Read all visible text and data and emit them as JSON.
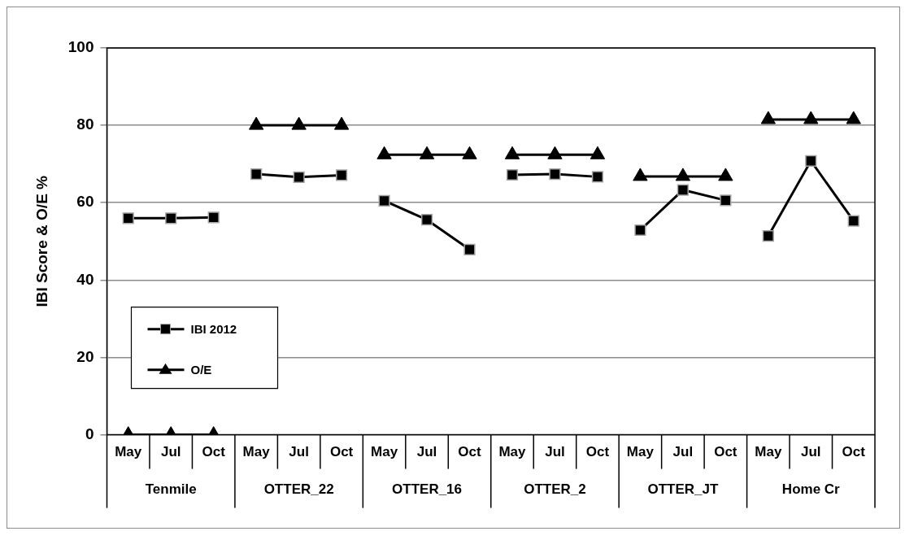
{
  "chart_data": {
    "type": "line",
    "ylabel": "IBI Score & O/E %",
    "categories": [
      "May",
      "Jul",
      "Oct",
      "May",
      "Jul",
      "Oct",
      "May",
      "Jul",
      "Oct",
      "May",
      "Jul",
      "Oct",
      "May",
      "Jul",
      "Oct",
      "May",
      "Jul",
      "Oct"
    ],
    "annotations": [
      "Tenmile",
      "OTTER_22",
      "OTTER_16",
      "OTTER_2",
      "OTTER_JT",
      "Home Cr"
    ],
    "series": [
      {
        "name": "IBI 2012",
        "color": "#000000",
        "marker": "square",
        "values": [
          56,
          56,
          56.2,
          null,
          null,
          null,
          null,
          null,
          null,
          null,
          null,
          null,
          null,
          null,
          null,
          null,
          null,
          null
        ]
      },
      {
        "name": "O/E",
        "color": "#000000",
        "marker": "triangle",
        "values": [
          0,
          0,
          0,
          null,
          null,
          null,
          null,
          null,
          null,
          null,
          null,
          null,
          null,
          null,
          null,
          null,
          null,
          null
        ]
      },
      {
        "color": "#000000",
        "marker": "square",
        "values": [
          null,
          null,
          null,
          67.4,
          66.6,
          67.1,
          null,
          null,
          null,
          null,
          null,
          null,
          null,
          null,
          null,
          null,
          null,
          null
        ]
      },
      {
        "color": "#000000",
        "marker": "triangle",
        "values": [
          null,
          null,
          null,
          80,
          80,
          80,
          null,
          null,
          null,
          null,
          null,
          null,
          null,
          null,
          null,
          null,
          null,
          null
        ]
      },
      {
        "color": "#000000",
        "marker": "square",
        "values": [
          null,
          null,
          null,
          null,
          null,
          null,
          60.5,
          55.6,
          47.9,
          null,
          null,
          null,
          null,
          null,
          null,
          null,
          null,
          null
        ]
      },
      {
        "color": "#000000",
        "marker": "triangle",
        "values": [
          null,
          null,
          null,
          null,
          null,
          null,
          72.4,
          72.4,
          72.4,
          null,
          null,
          null,
          null,
          null,
          null,
          null,
          null,
          null
        ]
      },
      {
        "color": "#000000",
        "marker": "square",
        "values": [
          null,
          null,
          null,
          null,
          null,
          null,
          null,
          null,
          null,
          67.2,
          67.4,
          66.7,
          null,
          null,
          null,
          null,
          null,
          null
        ]
      },
      {
        "color": "#000000",
        "marker": "triangle",
        "values": [
          null,
          null,
          null,
          null,
          null,
          null,
          null,
          null,
          null,
          72.4,
          72.4,
          72.4,
          null,
          null,
          null,
          null,
          null,
          null
        ]
      },
      {
        "color": "#000000",
        "marker": "square",
        "values": [
          null,
          null,
          null,
          null,
          null,
          null,
          null,
          null,
          null,
          null,
          null,
          null,
          52.9,
          63.3,
          60.6,
          null,
          null,
          null
        ]
      },
      {
        "color": "#000000",
        "marker": "triangle",
        "values": [
          null,
          null,
          null,
          null,
          null,
          null,
          null,
          null,
          null,
          null,
          null,
          null,
          66.8,
          66.8,
          66.8,
          null,
          null,
          null
        ]
      },
      {
        "color": "#000000",
        "marker": "square",
        "values": [
          null,
          null,
          null,
          null,
          null,
          null,
          null,
          null,
          null,
          null,
          null,
          null,
          null,
          null,
          null,
          51.4,
          70.8,
          55.3
        ]
      },
      {
        "color": "#000000",
        "marker": "triangle",
        "values": [
          null,
          null,
          null,
          null,
          null,
          null,
          null,
          null,
          null,
          null,
          null,
          null,
          null,
          null,
          null,
          81.5,
          81.5,
          81.5
        ]
      }
    ],
    "ylim": [
      0,
      100
    ],
    "yticks": [
      0,
      20,
      40,
      60,
      80,
      100
    ],
    "grid": "y",
    "legend": "left"
  }
}
